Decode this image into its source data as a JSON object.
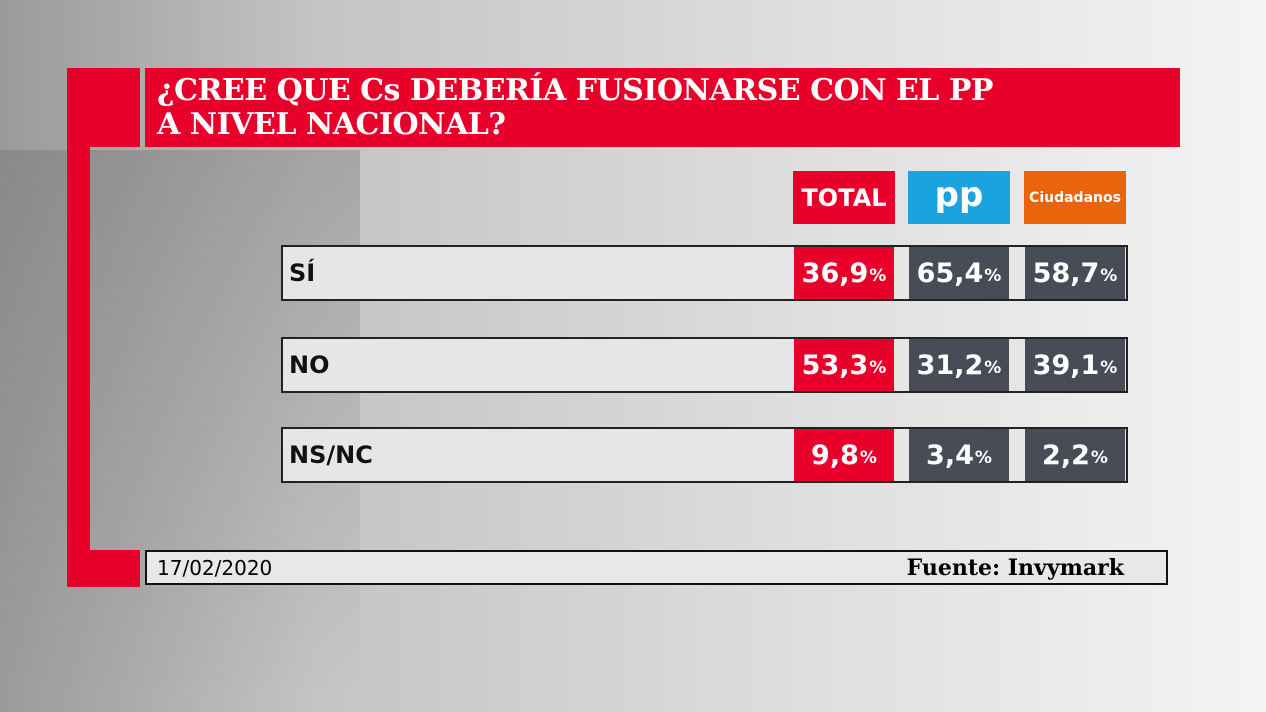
{
  "title_line1": "¿CREE QUE Cs DEBERÍA FUSIONARSE CON EL PP",
  "title_line2": "A NIVEL NACIONAL?",
  "columns": [
    {
      "label": "TOTAL",
      "color": "#e8002a"
    },
    {
      "label": "pp",
      "color": "#1ba3e0"
    },
    {
      "label": "Ciudadanos",
      "color": "#ea640c"
    }
  ],
  "cell_colors": {
    "total": "#e8002a",
    "party": "#474c57"
  },
  "chart_data": {
    "type": "table",
    "title": "¿CREE QUE Cs DEBERÍA FUSIONARSE CON EL PP A NIVEL NACIONAL?",
    "columns": [
      "TOTAL",
      "PP",
      "Ciudadanos"
    ],
    "rows": [
      {
        "label": "SÍ",
        "values": [
          "36,9",
          "65,4",
          "58,7"
        ]
      },
      {
        "label": "NO",
        "values": [
          "53,3",
          "31,2",
          "39,1"
        ]
      },
      {
        "label": "NS/NC",
        "values": [
          "9,8",
          "3,4",
          "2,2"
        ]
      }
    ],
    "unit": "%"
  },
  "footer": {
    "date": "17/02/2020",
    "source": "Fuente: Invymark"
  }
}
